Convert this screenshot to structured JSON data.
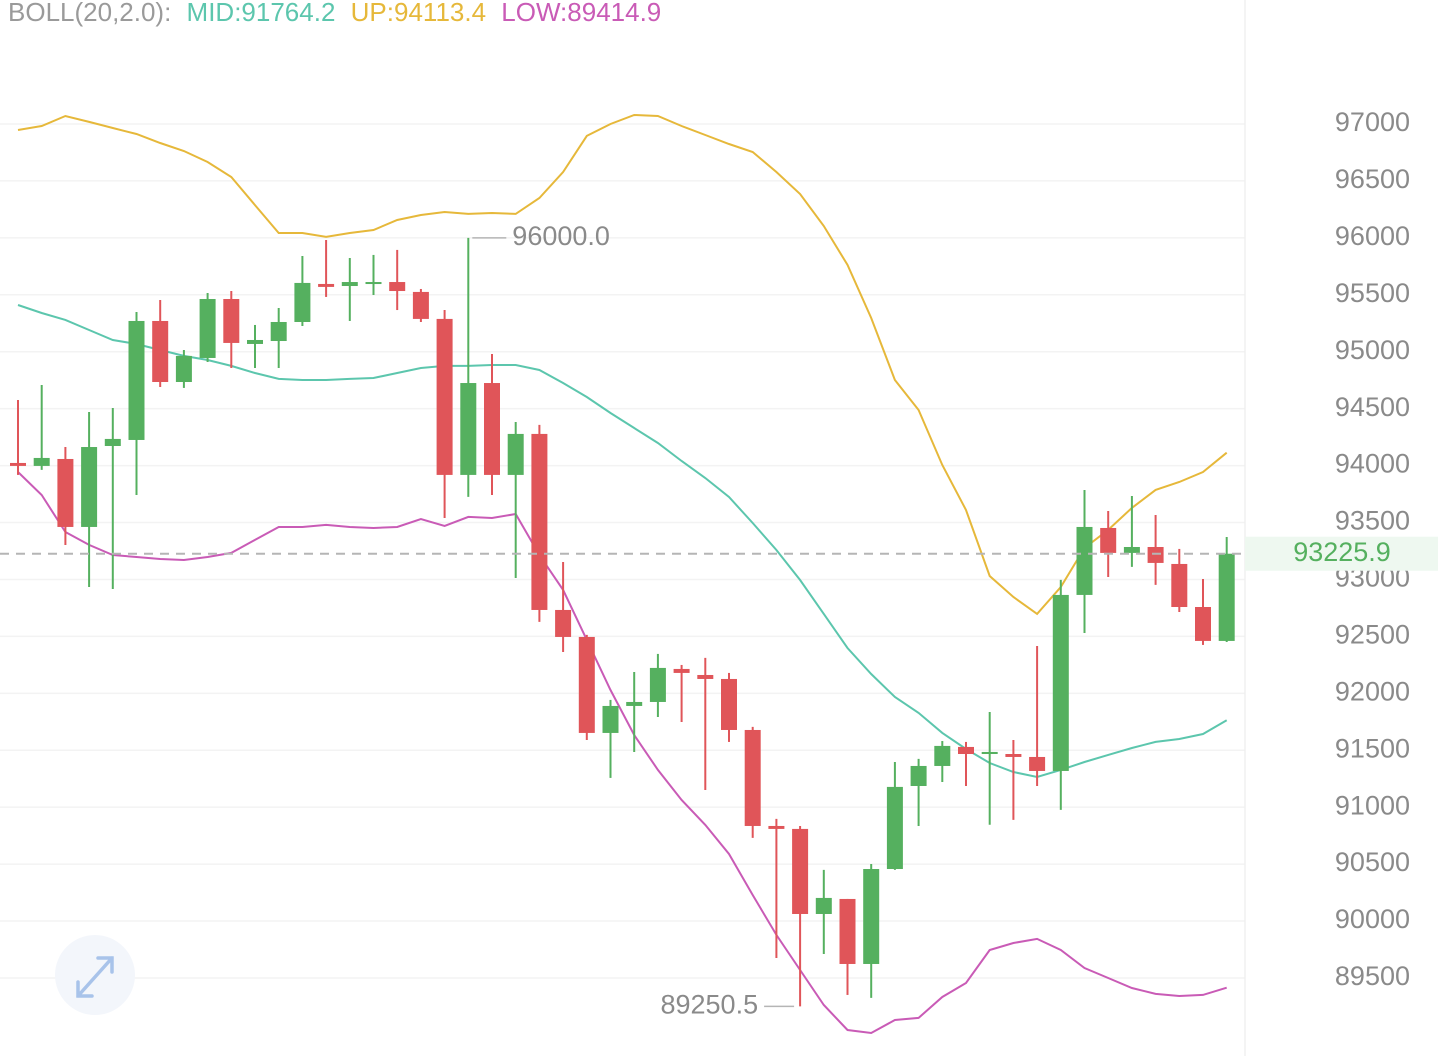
{
  "chart_data": {
    "type": "candlestick",
    "indicator_label": "BOLL(20,2.0):",
    "open": [
      94023,
      93997,
      94058,
      93461,
      94172,
      94225,
      95270,
      94734,
      94945,
      95463,
      95068,
      95094,
      95261,
      95595,
      95577,
      95595,
      95612,
      95525,
      95288,
      93918,
      94725,
      93918,
      94278,
      92732,
      92495,
      91652,
      91889,
      91924,
      92214,
      92161,
      92126,
      91678,
      90835,
      90809,
      90062,
      90194,
      89623,
      90457,
      91186,
      91362,
      91529,
      91467,
      91467,
      91441,
      91318,
      92864,
      93452,
      93233,
      93285,
      93136,
      92758,
      92460
    ],
    "high": [
      94576,
      94708,
      94163,
      94471,
      94506,
      95349,
      95454,
      95015,
      95516,
      95533,
      95235,
      95384,
      95841,
      95981,
      95823,
      95850,
      95894,
      95551,
      95366,
      96000,
      94980,
      94383,
      94357,
      93153,
      92513,
      91942,
      92187,
      92346,
      92249,
      92311,
      92179,
      91705,
      90897,
      90835,
      90449,
      90194,
      90501,
      91397,
      91424,
      91581,
      91573,
      91836,
      91590,
      92416,
      92996,
      93786,
      93601,
      93733,
      93566,
      93268,
      93004,
      93373
    ],
    "low": [
      93918,
      93962,
      93303,
      92934,
      92916,
      93742,
      94690,
      94682,
      94910,
      94857,
      94857,
      94857,
      95226,
      95481,
      95270,
      95498,
      95366,
      95261,
      93540,
      93725,
      93742,
      93013,
      92627,
      92363,
      91590,
      91257,
      91485,
      91792,
      91748,
      91151,
      91573,
      90730,
      89676,
      89250.5,
      89711,
      89351,
      89325,
      90449,
      90835,
      91221,
      91186,
      90846,
      90888,
      91186,
      90976,
      92530,
      93022,
      93110,
      92952,
      92714,
      92425,
      92451
    ],
    "close": [
      93997,
      94067,
      93461,
      94163,
      94234,
      95270,
      94734,
      94963,
      95463,
      95077,
      95103,
      95261,
      95604,
      95569,
      95612,
      95612,
      95533,
      95288,
      93918,
      94725,
      93918,
      94278,
      92732,
      92495,
      91652,
      91889,
      91924,
      92223,
      92179,
      92126,
      91678,
      90835,
      90809,
      90062,
      90203,
      89623,
      90457,
      91178,
      91362,
      91538,
      91467,
      91485,
      91441,
      91318,
      92864,
      93461,
      93233,
      93285,
      93145,
      92758,
      92460,
      93225.9
    ],
    "up_color": "#55b05f",
    "down_color": "#e05559",
    "series": [
      {
        "name": "MID:91764.2",
        "color": "#5cc6ad",
        "values": [
          95410,
          95340,
          95279,
          95191,
          95103,
          95068,
          95015,
          94963,
          94927,
          94875,
          94813,
          94761,
          94752,
          94752,
          94761,
          94769,
          94813,
          94857,
          94875,
          94875,
          94883,
          94883,
          94839,
          94725,
          94602,
          94462,
          94330,
          94198,
          94040,
          93891,
          93724,
          93496,
          93259,
          92995,
          92697,
          92398,
          92170,
          91968,
          91828,
          91652,
          91511,
          91388,
          91309,
          91265,
          91327,
          91397,
          91459,
          91520,
          91573,
          91599,
          91643,
          91764.2
        ]
      },
      {
        "name": "UP:94113.4",
        "color": "#e6b83a",
        "values": [
          96947,
          96982,
          97070,
          97018,
          96965,
          96912,
          96833,
          96763,
          96666,
          96534,
          96288,
          96043,
          96043,
          96008,
          96043,
          96069,
          96157,
          96201,
          96227,
          96210,
          96218,
          96210,
          96350,
          96578,
          96895,
          97000,
          97079,
          97070,
          96982,
          96903,
          96824,
          96754,
          96578,
          96385,
          96104,
          95762,
          95296,
          94752,
          94488,
          94005,
          93610,
          93030,
          92846,
          92697,
          92934,
          93277,
          93435,
          93628,
          93786,
          93856,
          93944,
          94113.4
        ]
      },
      {
        "name": "LOW:89414.9",
        "color": "#c95bb6",
        "values": [
          93944,
          93742,
          93417,
          93303,
          93215,
          93197,
          93180,
          93171,
          93197,
          93233,
          93347,
          93461,
          93461,
          93479,
          93461,
          93452,
          93461,
          93531,
          93470,
          93549,
          93540,
          93575,
          93215,
          92908,
          92469,
          92029,
          91634,
          91327,
          91063,
          90844,
          90589,
          90229,
          89878,
          89570,
          89263,
          89043,
          89017,
          89131,
          89149,
          89333,
          89456,
          89746,
          89807,
          89843,
          89746,
          89588,
          89500,
          89412,
          89360,
          89342,
          89351,
          89414.9
        ]
      }
    ],
    "annotations": [
      "96000.0",
      "89250.5"
    ],
    "last_price": 93225.9,
    "ylim": [
      88900,
      97900
    ],
    "yticks": [
      89500,
      90000,
      90500,
      91000,
      91500,
      92000,
      92500,
      93000,
      93500,
      94000,
      94500,
      95000,
      95500,
      96000,
      96500,
      97000
    ],
    "grid": true
  }
}
